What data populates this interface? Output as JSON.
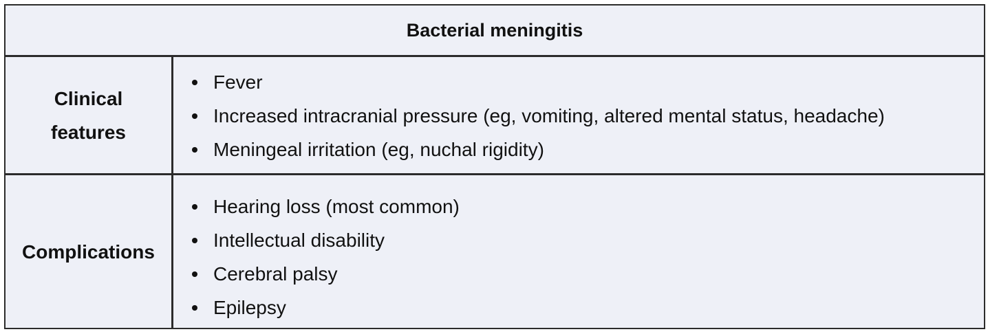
{
  "table": {
    "title": "Bacterial meningitis",
    "rows": [
      {
        "label": "Clinical features",
        "items": [
          "Fever",
          "Increased intracranial pressure (eg, vomiting, altered mental status, headache)",
          "Meningeal irritation (eg, nuchal rigidity)"
        ]
      },
      {
        "label": "Complications",
        "items": [
          "Hearing loss (most common)",
          "Intellectual disability",
          "Cerebral palsy",
          "Epilepsy"
        ]
      }
    ]
  },
  "colors": {
    "background": "#eef0f7",
    "border": "#2b2b2b",
    "text": "#111111"
  }
}
